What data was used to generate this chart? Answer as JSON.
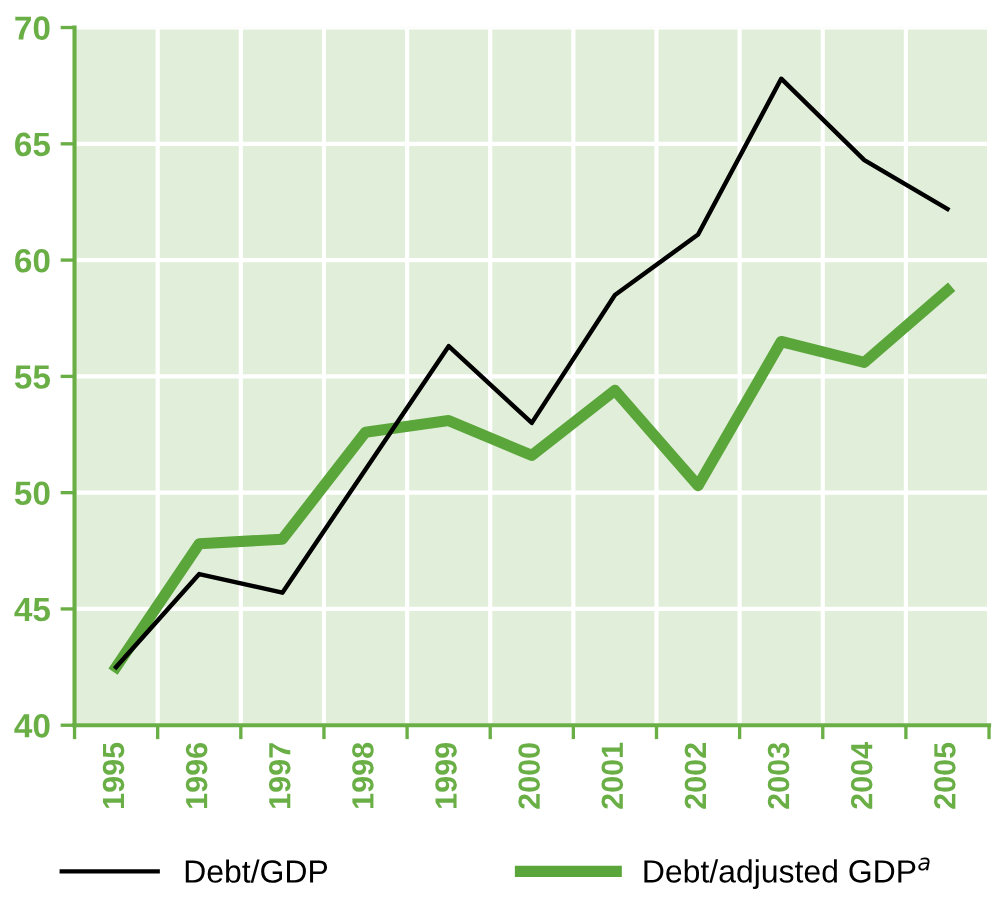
{
  "chart_data": {
    "type": "line",
    "categories": [
      "1995",
      "1996",
      "1997",
      "1998",
      "1999",
      "2000",
      "2001",
      "2002",
      "2003",
      "2004",
      "2005"
    ],
    "series": [
      {
        "name": "Debt/GDP",
        "color": "#000000",
        "values": [
          42.5,
          46.5,
          45.7,
          51.0,
          56.3,
          53.0,
          58.5,
          61.1,
          67.8,
          64.3,
          62.2
        ]
      },
      {
        "name": "Debt/adjusted GDP$^{a}$",
        "color": "#5aa63a",
        "values": [
          42.5,
          47.8,
          48.0,
          52.6,
          53.1,
          51.6,
          54.4,
          50.3,
          56.5,
          55.6,
          58.7
        ]
      }
    ],
    "ylim": [
      40,
      70
    ],
    "yticks": [
      40,
      45,
      50,
      55,
      60,
      65,
      70
    ],
    "grid": true,
    "legend": "bottom",
    "marker": "none",
    "line_style": "solid"
  }
}
